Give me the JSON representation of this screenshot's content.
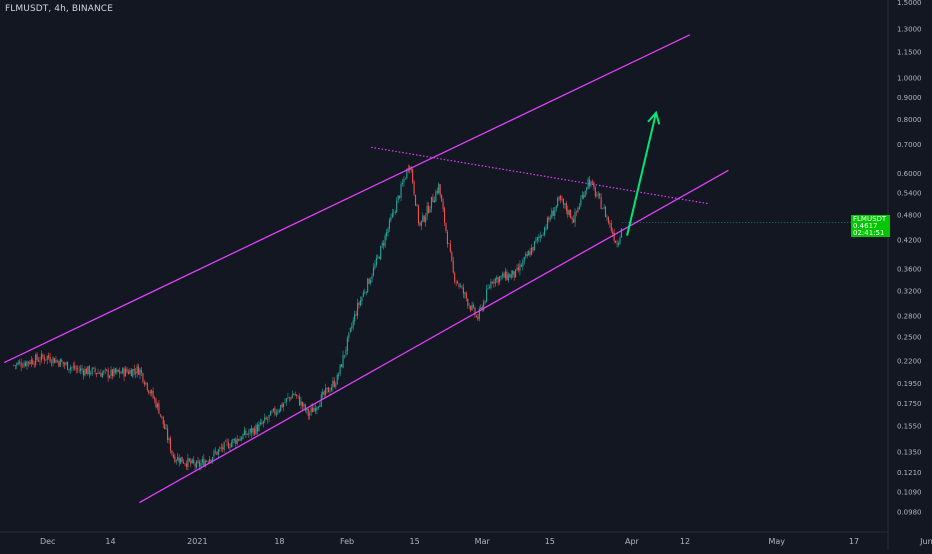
{
  "header": {
    "symbol_line": "FLMUSDT, 4h, BINANCE"
  },
  "price_tag": {
    "symbol": "FLMUSDT",
    "value": "0.4617",
    "timer": "02:41:51",
    "color": "#00c800"
  },
  "colors": {
    "background": "#131722",
    "up": "#26a69a",
    "down": "#ef5350",
    "channel": "#e040fb",
    "arrow": "#00e676",
    "axis_text": "#b2b5be"
  },
  "chart_data": {
    "type": "candlestick",
    "y_scale": "log",
    "ylim": [
      0.09,
      1.55
    ],
    "y_ticks": [
      "1.5000",
      "1.3000",
      "1.1500",
      "1.0000",
      "0.9000",
      "0.8000",
      "0.7000",
      "0.6000",
      "0.5400",
      "0.4800",
      "0.4200",
      "0.3600",
      "0.3200",
      "0.2800",
      "0.2500",
      "0.2200",
      "0.1950",
      "0.1750",
      "0.1550",
      "0.1350",
      "0.1210",
      "0.1090",
      "0.0980"
    ],
    "x_ticks": [
      "Dec",
      "14",
      "2021",
      "18",
      "Feb",
      "15",
      "Mar",
      "15",
      "Apr",
      "12",
      "May",
      "17",
      "Jun"
    ],
    "last_price": 0.4617,
    "key_points": [
      {
        "date": "2020-11-24",
        "price": 0.215
      },
      {
        "date": "2020-12-01",
        "price": 0.225
      },
      {
        "date": "2020-12-07",
        "price": 0.21
      },
      {
        "date": "2020-12-14",
        "price": 0.205
      },
      {
        "date": "2020-12-20",
        "price": 0.21
      },
      {
        "date": "2020-12-24",
        "price": 0.17
      },
      {
        "date": "2020-12-27",
        "price": 0.132
      },
      {
        "date": "2021-01-01",
        "price": 0.125
      },
      {
        "date": "2021-01-07",
        "price": 0.14
      },
      {
        "date": "2021-01-14",
        "price": 0.155
      },
      {
        "date": "2021-01-21",
        "price": 0.185
      },
      {
        "date": "2021-01-24",
        "price": 0.165
      },
      {
        "date": "2021-01-30",
        "price": 0.2
      },
      {
        "date": "2021-02-03",
        "price": 0.29
      },
      {
        "date": "2021-02-07",
        "price": 0.37
      },
      {
        "date": "2021-02-11",
        "price": 0.5
      },
      {
        "date": "2021-02-14",
        "price": 0.64
      },
      {
        "date": "2021-02-16",
        "price": 0.45
      },
      {
        "date": "2021-02-20",
        "price": 0.56
      },
      {
        "date": "2021-02-23",
        "price": 0.35
      },
      {
        "date": "2021-02-28",
        "price": 0.275
      },
      {
        "date": "2021-03-03",
        "price": 0.34
      },
      {
        "date": "2021-03-08",
        "price": 0.35
      },
      {
        "date": "2021-03-13",
        "price": 0.43
      },
      {
        "date": "2021-03-17",
        "price": 0.52
      },
      {
        "date": "2021-03-20",
        "price": 0.47
      },
      {
        "date": "2021-03-23",
        "price": 0.58
      },
      {
        "date": "2021-03-26",
        "price": 0.5
      },
      {
        "date": "2021-03-29",
        "price": 0.41
      },
      {
        "date": "2021-03-30",
        "price": 0.4617
      }
    ],
    "drawings": {
      "upper_channel": [
        {
          "date": "2020-11-22",
          "price": 0.218
        },
        {
          "date": "2021-04-13",
          "price": 1.26
        }
      ],
      "lower_channel": [
        {
          "date": "2020-12-20",
          "price": 0.103
        },
        {
          "date": "2021-04-21",
          "price": 0.61
        }
      ],
      "resistance_dotted": [
        {
          "date": "2021-02-06",
          "price": 0.69
        },
        {
          "date": "2021-04-17",
          "price": 0.51
        }
      ],
      "arrow": [
        {
          "date": "2021-03-31",
          "price": 0.43
        },
        {
          "date": "2021-04-06",
          "price": 0.83
        }
      ]
    }
  }
}
